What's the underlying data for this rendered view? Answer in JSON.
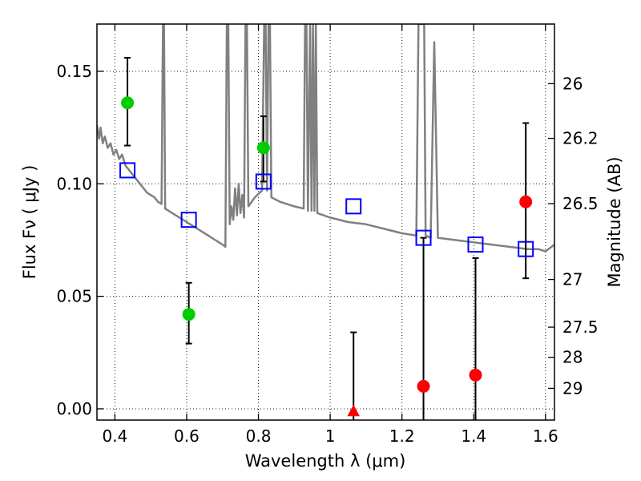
{
  "chart_data": {
    "type": "scatter",
    "xlabel": "Wavelength  λ (μm)",
    "ylabel": "Flux  Fν  ( μJy )",
    "y2label": "Magnitude (AB)",
    "xlim": [
      0.35,
      1.625
    ],
    "ylim": [
      -0.005,
      0.171
    ],
    "grid": true,
    "x_ticks": [
      0.4,
      0.6,
      0.8,
      1.0,
      1.2,
      1.4,
      1.6
    ],
    "x_tick_labels": [
      "0.4",
      "0.6",
      "0.8",
      "1",
      "1.2",
      "1.4",
      "1.6"
    ],
    "y_ticks": [
      0.0,
      0.05,
      0.1,
      0.15
    ],
    "y_tick_labels": [
      "0.00",
      "0.05",
      "0.10",
      "0.15"
    ],
    "magnitude_ticks": [
      {
        "label": "26",
        "flux": 0.1445
      },
      {
        "label": "26.2",
        "flux": 0.1202
      },
      {
        "label": "26.5",
        "flux": 0.0912
      },
      {
        "label": "27",
        "flux": 0.0575
      },
      {
        "label": "27.5",
        "flux": 0.0363
      },
      {
        "label": "28",
        "flux": 0.0229
      },
      {
        "label": "29",
        "flux": 0.0091
      }
    ],
    "detections": [
      {
        "x": 0.435,
        "y": 0.136,
        "err_low": 0.117,
        "err_high": 0.156,
        "color": "#00cc00"
      },
      {
        "x": 0.606,
        "y": 0.042,
        "err_low": 0.029,
        "err_high": 0.056,
        "color": "#00cc00"
      },
      {
        "x": 0.814,
        "y": 0.116,
        "err_low": 0.101,
        "err_high": 0.13,
        "color": "#00cc00"
      },
      {
        "x": 1.26,
        "y": 0.01,
        "err_low": -0.006,
        "err_high": 0.076,
        "color": "#ff0000"
      },
      {
        "x": 1.405,
        "y": 0.015,
        "err_low": -0.006,
        "err_high": 0.067,
        "color": "#ff0000"
      },
      {
        "x": 1.545,
        "y": 0.092,
        "err_low": 0.058,
        "err_high": 0.127,
        "color": "#ff0000"
      }
    ],
    "upper_limits": [
      {
        "x": 1.065,
        "y": -0.001,
        "err_low": -0.006,
        "err_high": 0.034,
        "color": "#ff0000"
      }
    ],
    "model_photometry": [
      {
        "x": 0.435,
        "y": 0.106
      },
      {
        "x": 0.606,
        "y": 0.084
      },
      {
        "x": 0.814,
        "y": 0.101
      },
      {
        "x": 1.065,
        "y": 0.09
      },
      {
        "x": 1.26,
        "y": 0.076
      },
      {
        "x": 1.405,
        "y": 0.073
      },
      {
        "x": 1.545,
        "y": 0.071
      }
    ],
    "sed_model": [
      [
        0.35,
        0.126
      ],
      [
        0.356,
        0.12
      ],
      [
        0.36,
        0.125
      ],
      [
        0.366,
        0.118
      ],
      [
        0.372,
        0.121
      ],
      [
        0.38,
        0.116
      ],
      [
        0.388,
        0.118
      ],
      [
        0.396,
        0.113
      ],
      [
        0.404,
        0.115
      ],
      [
        0.412,
        0.111
      ],
      [
        0.42,
        0.113
      ],
      [
        0.43,
        0.108
      ],
      [
        0.44,
        0.106
      ],
      [
        0.45,
        0.104
      ],
      [
        0.46,
        0.102
      ],
      [
        0.47,
        0.1
      ],
      [
        0.48,
        0.098
      ],
      [
        0.49,
        0.096
      ],
      [
        0.5,
        0.095
      ],
      [
        0.51,
        0.094
      ],
      [
        0.52,
        0.092
      ],
      [
        0.53,
        0.091
      ],
      [
        0.534,
        0.171
      ],
      [
        0.537,
        0.171
      ],
      [
        0.54,
        0.089
      ],
      [
        0.56,
        0.087
      ],
      [
        0.58,
        0.085
      ],
      [
        0.6,
        0.083
      ],
      [
        0.62,
        0.081
      ],
      [
        0.64,
        0.079
      ],
      [
        0.66,
        0.077
      ],
      [
        0.68,
        0.075
      ],
      [
        0.7,
        0.073
      ],
      [
        0.708,
        0.072
      ],
      [
        0.712,
        0.171
      ],
      [
        0.716,
        0.171
      ],
      [
        0.72,
        0.082
      ],
      [
        0.725,
        0.09
      ],
      [
        0.73,
        0.084
      ],
      [
        0.735,
        0.098
      ],
      [
        0.74,
        0.086
      ],
      [
        0.745,
        0.1
      ],
      [
        0.75,
        0.087
      ],
      [
        0.755,
        0.095
      ],
      [
        0.76,
        0.085
      ],
      [
        0.764,
        0.171
      ],
      [
        0.768,
        0.171
      ],
      [
        0.772,
        0.09
      ],
      [
        0.79,
        0.094
      ],
      [
        0.81,
        0.097
      ],
      [
        0.816,
        0.171
      ],
      [
        0.82,
        0.171
      ],
      [
        0.824,
        0.097
      ],
      [
        0.828,
        0.171
      ],
      [
        0.832,
        0.171
      ],
      [
        0.836,
        0.094
      ],
      [
        0.86,
        0.092
      ],
      [
        0.9,
        0.09
      ],
      [
        0.926,
        0.089
      ],
      [
        0.93,
        0.171
      ],
      [
        0.934,
        0.171
      ],
      [
        0.938,
        0.088
      ],
      [
        0.944,
        0.171
      ],
      [
        0.948,
        0.088
      ],
      [
        0.952,
        0.171
      ],
      [
        0.956,
        0.088
      ],
      [
        0.96,
        0.171
      ],
      [
        0.964,
        0.087
      ],
      [
        1.0,
        0.085
      ],
      [
        1.05,
        0.083
      ],
      [
        1.1,
        0.082
      ],
      [
        1.15,
        0.08
      ],
      [
        1.2,
        0.078
      ],
      [
        1.24,
        0.077
      ],
      [
        1.246,
        0.171
      ],
      [
        1.262,
        0.171
      ],
      [
        1.266,
        0.077
      ],
      [
        1.28,
        0.076
      ],
      [
        1.29,
        0.163
      ],
      [
        1.3,
        0.076
      ],
      [
        1.35,
        0.075
      ],
      [
        1.4,
        0.074
      ],
      [
        1.45,
        0.073
      ],
      [
        1.5,
        0.072
      ],
      [
        1.55,
        0.071
      ],
      [
        1.58,
        0.071
      ],
      [
        1.6,
        0.07
      ],
      [
        1.625,
        0.073
      ]
    ]
  }
}
